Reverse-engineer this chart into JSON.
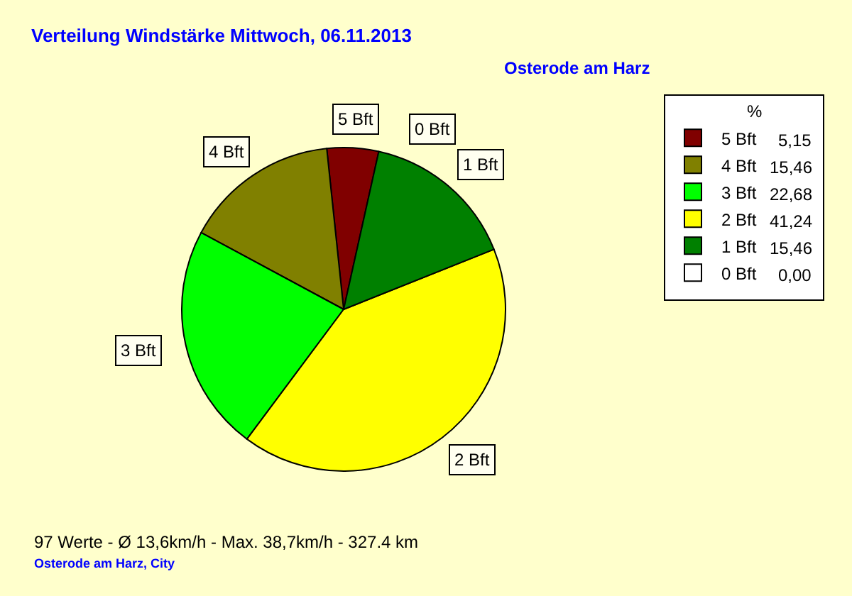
{
  "chart_data": {
    "type": "pie",
    "title": "Verteilung Windstärke Mittwoch, 06.11.2013",
    "subtitle": "Osterode am Harz",
    "legend_title": "%",
    "categories": [
      "5 Bft",
      "4 Bft",
      "3 Bft",
      "2 Bft",
      "1 Bft",
      "0 Bft"
    ],
    "values": [
      5.15,
      15.46,
      22.68,
      41.24,
      15.46,
      0
    ],
    "value_labels": [
      "5,15",
      "15,46",
      "22,68",
      "41,24",
      "15,46",
      "0,00"
    ],
    "colors": [
      "#800000",
      "#808000",
      "#00ff00",
      "#ffff00",
      "#008000",
      "#ffffff"
    ],
    "legend": "top right",
    "annotations": [
      "97 Werte - Ø 13,6km/h - Max. 38,7km/h - 327.4 km",
      "Osterode am Harz, City"
    ]
  }
}
